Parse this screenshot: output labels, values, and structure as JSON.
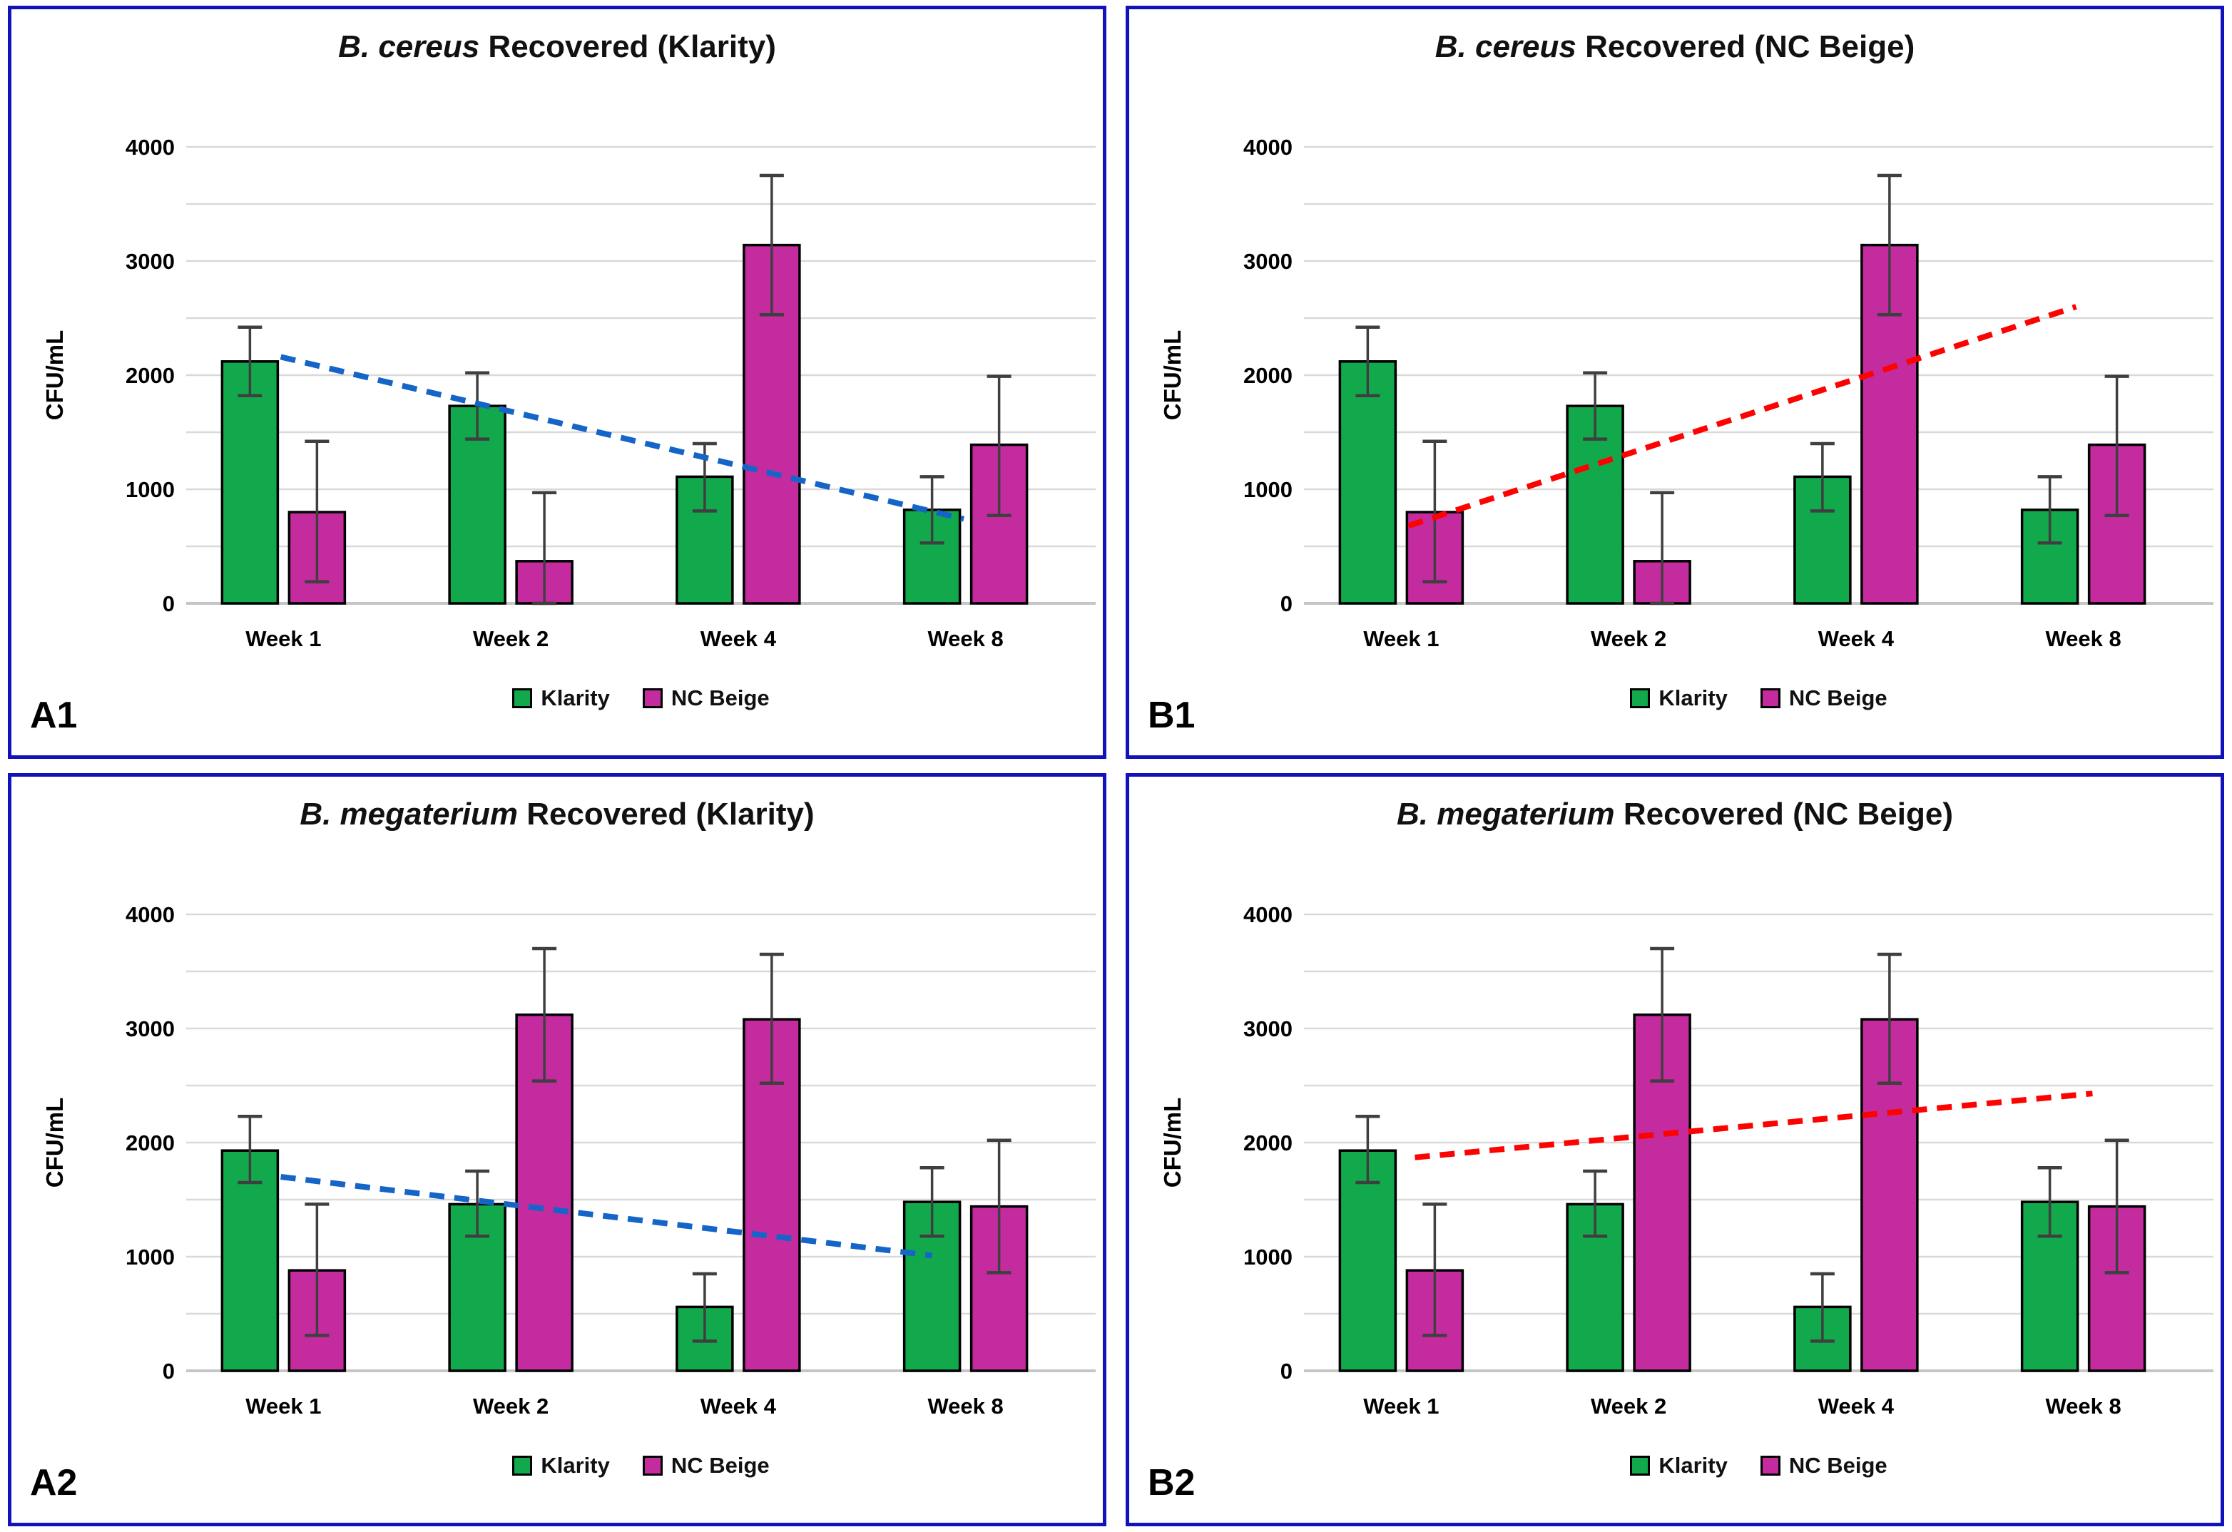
{
  "figure": {
    "border_color": "#1212bc",
    "background": "#ffffff",
    "gridline_color": "#d9d9d9",
    "baseline_color": "#c6c6c6",
    "error_bar_color": "#3f3f3f",
    "bar_outline_color": "#000000"
  },
  "chart_data": [
    {
      "type": "bar",
      "panel_label": "A1",
      "title_italic": "B. cereus",
      "title_rest": " Recovered (Klarity)",
      "ylabel": "CFU/mL",
      "ylim": [
        0,
        4000
      ],
      "ytick_step": 500,
      "grid": true,
      "legend_position": "bottom",
      "categories": [
        "Week 1",
        "Week 2",
        "Week 4",
        "Week 8"
      ],
      "series": [
        {
          "name": "Klarity",
          "color": "#12a94d",
          "values": [
            2120,
            1730,
            1110,
            820
          ],
          "err_lo": [
            1820,
            1440,
            810,
            530
          ],
          "err_hi": [
            2420,
            2020,
            1400,
            1110
          ]
        },
        {
          "name": "NC Beige",
          "color": "#c32b9f",
          "values": [
            800,
            370,
            3140,
            1390
          ],
          "err_lo": [
            190,
            0,
            2530,
            770
          ],
          "err_hi": [
            1420,
            970,
            3750,
            1990
          ]
        }
      ],
      "trendline": {
        "series": "Klarity",
        "style": "dashed",
        "color": "#1565c8",
        "x_start_frac": 0.104,
        "x_end_frac": 0.855,
        "start_value": 2160,
        "end_value": 740
      }
    },
    {
      "type": "bar",
      "panel_label": "B1",
      "title_italic": "B. cereus",
      "title_rest": " Recovered (NC Beige)",
      "ylabel": "CFU/mL",
      "ylim": [
        0,
        4000
      ],
      "ytick_step": 500,
      "grid": true,
      "legend_position": "bottom",
      "categories": [
        "Week 1",
        "Week 2",
        "Week 4",
        "Week 8"
      ],
      "series": [
        {
          "name": "Klarity",
          "color": "#12a94d",
          "values": [
            2120,
            1730,
            1110,
            820
          ],
          "err_lo": [
            1820,
            1440,
            810,
            530
          ],
          "err_hi": [
            2420,
            2020,
            1400,
            1110
          ]
        },
        {
          "name": "NC Beige",
          "color": "#c32b9f",
          "values": [
            800,
            370,
            3140,
            1390
          ],
          "err_lo": [
            190,
            0,
            2530,
            770
          ],
          "err_hi": [
            1420,
            970,
            3750,
            1990
          ]
        }
      ],
      "trendline": {
        "series": "NC Beige",
        "style": "dashed",
        "color": "#fe0202",
        "x_start_frac": 0.115,
        "x_end_frac": 0.849,
        "start_value": 680,
        "end_value": 2600
      }
    },
    {
      "type": "bar",
      "panel_label": "A2",
      "title_italic": "B. megaterium",
      "title_rest": " Recovered (Klarity)",
      "ylabel": "CFU/mL",
      "ylim": [
        0,
        4000
      ],
      "ytick_step": 500,
      "grid": true,
      "legend_position": "bottom",
      "categories": [
        "Week 1",
        "Week 2",
        "Week 4",
        "Week 8"
      ],
      "series": [
        {
          "name": "Klarity",
          "color": "#12a94d",
          "values": [
            1930,
            1460,
            560,
            1480
          ],
          "err_lo": [
            1650,
            1180,
            260,
            1180
          ],
          "err_hi": [
            2230,
            1750,
            850,
            1780
          ]
        },
        {
          "name": "NC Beige",
          "color": "#c32b9f",
          "values": [
            880,
            3120,
            3080,
            1440
          ],
          "err_lo": [
            310,
            2540,
            2520,
            860
          ],
          "err_hi": [
            1460,
            3700,
            3650,
            2020
          ]
        }
      ],
      "trendline": {
        "series": "Klarity",
        "style": "dashed",
        "color": "#1565c8",
        "x_start_frac": 0.104,
        "x_end_frac": 0.82,
        "start_value": 1700,
        "end_value": 1010
      }
    },
    {
      "type": "bar",
      "panel_label": "B2",
      "title_italic": "B. megaterium",
      "title_rest": " Recovered (NC Beige)",
      "ylabel": "CFU/mL",
      "ylim": [
        0,
        4000
      ],
      "ytick_step": 500,
      "grid": true,
      "legend_position": "bottom",
      "categories": [
        "Week 1",
        "Week 2",
        "Week 4",
        "Week 8"
      ],
      "series": [
        {
          "name": "Klarity",
          "color": "#12a94d",
          "values": [
            1930,
            1460,
            560,
            1480
          ],
          "err_lo": [
            1650,
            1180,
            260,
            1180
          ],
          "err_hi": [
            2230,
            1750,
            850,
            1780
          ]
        },
        {
          "name": "NC Beige",
          "color": "#c32b9f",
          "values": [
            880,
            3120,
            3080,
            1440
          ],
          "err_lo": [
            310,
            2540,
            2520,
            860
          ],
          "err_hi": [
            1460,
            3700,
            3650,
            2020
          ]
        }
      ],
      "trendline": {
        "series": "NC Beige",
        "style": "dashed",
        "color": "#fe0202",
        "x_start_frac": 0.122,
        "x_end_frac": 0.867,
        "start_value": 1870,
        "end_value": 2430
      }
    }
  ]
}
